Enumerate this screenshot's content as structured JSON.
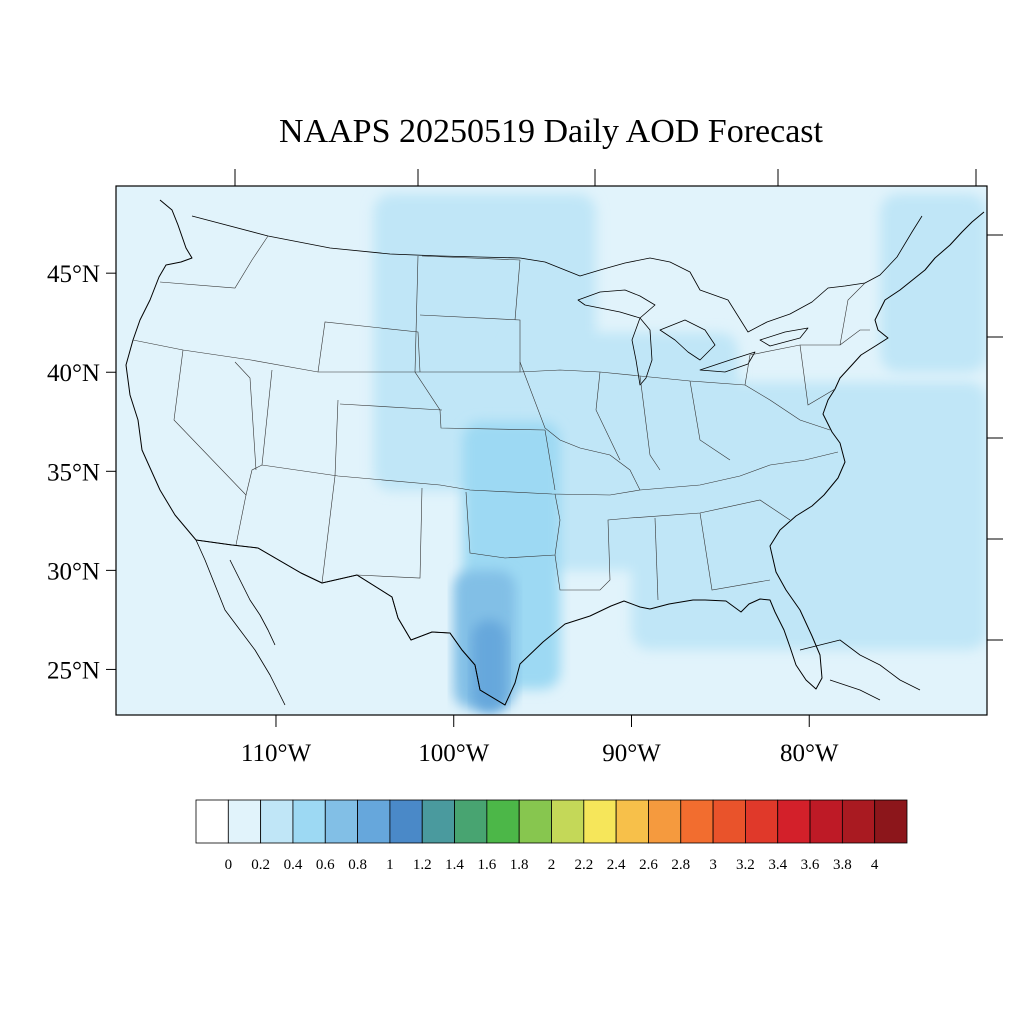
{
  "title": "NAAPS 20250519 Daily AOD Forecast",
  "map": {
    "lon_range": [
      -119.0,
      -70.0
    ],
    "lat_range": [
      22.7,
      49.4
    ],
    "lat_ticks": [
      {
        "value": 45,
        "label": "45°N"
      },
      {
        "value": 40,
        "label": "40°N"
      },
      {
        "value": 35,
        "label": "35°N"
      },
      {
        "value": 30,
        "label": "30°N"
      },
      {
        "value": 25,
        "label": "25°N"
      }
    ],
    "lon_ticks": [
      {
        "value": -110,
        "label": "110°W"
      },
      {
        "value": -100,
        "label": "100°W"
      },
      {
        "value": -90,
        "label": "90°W"
      },
      {
        "value": -80,
        "label": "80°W"
      }
    ],
    "aod_fields_estimated": [
      {
        "level": "0.2-0.4",
        "desc": "northern plains plume",
        "lon": [
          -104.5,
          -92.0
        ],
        "lat": [
          34.0,
          49.0
        ]
      },
      {
        "level": "0.2-0.4",
        "desc": "mississippi valley band",
        "lon": [
          -97.0,
          -84.0
        ],
        "lat": [
          30.0,
          42.0
        ]
      },
      {
        "level": "0.4-0.6",
        "desc": "texas and lower mississippi",
        "lon": [
          -99.5,
          -94.0
        ],
        "lat": [
          24.0,
          37.5
        ]
      },
      {
        "level": "0.6-0.8",
        "desc": "south texas core",
        "lon": [
          -100.0,
          -96.5
        ],
        "lat": [
          23.0,
          30.0
        ]
      },
      {
        "level": "0.8-1.0",
        "desc": "rio grande valley core",
        "lon": [
          -99.0,
          -97.0
        ],
        "lat": [
          22.8,
          27.5
        ]
      },
      {
        "level": "0.2-0.4",
        "desc": "southeast and atlantic",
        "lon": [
          -90.0,
          -70.0
        ],
        "lat": [
          26.0,
          39.5
        ]
      },
      {
        "level": "0.2-0.4",
        "desc": "northeast atlantic",
        "lon": [
          -76.0,
          -70.0
        ],
        "lat": [
          40.0,
          49.0
        ]
      }
    ]
  },
  "colorbar": {
    "labels": [
      "0",
      "0.2",
      "0.4",
      "0.6",
      "0.8",
      "1",
      "1.2",
      "1.4",
      "1.6",
      "1.8",
      "2",
      "2.2",
      "2.4",
      "2.6",
      "2.8",
      "3",
      "3.2",
      "3.4",
      "3.6",
      "3.8",
      "4"
    ],
    "colors": [
      "#ffffff",
      "#e1f3fb",
      "#c0e6f7",
      "#9dd9f3",
      "#82bfe6",
      "#66a7dc",
      "#4a89c8",
      "#4a9a9e",
      "#48a471",
      "#4cb748",
      "#87c64f",
      "#c4d858",
      "#f6e65a",
      "#f7c04a",
      "#f59a3e",
      "#f26d2f",
      "#e9532b",
      "#e0392a",
      "#d3202a",
      "#be1a26",
      "#a91a21",
      "#8c161b"
    ]
  }
}
